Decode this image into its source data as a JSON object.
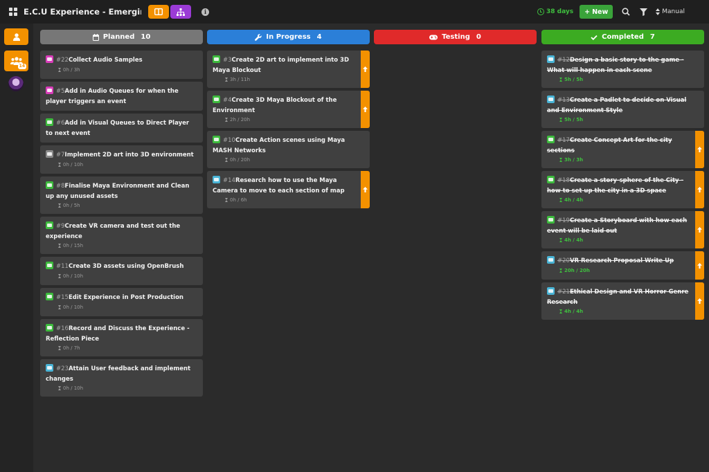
{
  "app": {
    "title": "E.C.U Experience - Emerging Te..."
  },
  "topbar": {
    "days_left": "38 days",
    "new_label": "New",
    "sort_label": "Manual"
  },
  "sidebar": {
    "team_badge": "14"
  },
  "colors": {
    "orange": "#f39100",
    "purple": "#9b3bd6",
    "green": "#3aa33a",
    "planned": "#777777",
    "in_progress": "#2b7fd8",
    "testing": "#e02a2a",
    "completed": "#3cab22"
  },
  "columns": [
    {
      "name": "Planned",
      "count": "10",
      "icon": "calendar-icon",
      "cards": [
        {
          "num": "#22",
          "title": "Collect Audio Samples",
          "time": "0h / 3h",
          "type": "pink"
        },
        {
          "num": "#5",
          "title": "Add in Audio Queues for when the player triggers an event",
          "time": "",
          "type": "pink"
        },
        {
          "num": "#6",
          "title": "Add in Visual Queues to Direct Player to next event",
          "time": "",
          "type": "green"
        },
        {
          "num": "#7",
          "title": "Implement 2D art into 3D environment",
          "time": "0h / 10h",
          "type": "gray"
        },
        {
          "num": "#8",
          "title": "Finalise Maya Environment and Clean up any unused assets",
          "time": "0h / 5h",
          "type": "green"
        },
        {
          "num": "#9",
          "title": "Create VR camera and test out the experience",
          "time": "0h / 15h",
          "type": "green"
        },
        {
          "num": "#11",
          "title": "Create 3D assets using OpenBrush",
          "time": "0h / 10h",
          "type": "green"
        },
        {
          "num": "#15",
          "title": "Edit Experience in Post Production",
          "time": "0h / 10h",
          "type": "green"
        },
        {
          "num": "#16",
          "title": "Record and Discuss the Experience - Reflection Piece",
          "time": "0h / 7h",
          "type": "green"
        },
        {
          "num": "#23",
          "title": "Attain User feedback and implement changes",
          "time": "0h / 10h",
          "type": "blue"
        }
      ]
    },
    {
      "name": "In Progress",
      "count": "4",
      "icon": "wrench-icon",
      "cards": [
        {
          "num": "#3",
          "title": "Create 2D art to implement into 3D Maya Blockout",
          "time": "3h / 11h",
          "type": "green",
          "arrow": true
        },
        {
          "num": "#4",
          "title": "Create 3D Maya Blockout of the Environment",
          "time": "2h / 20h",
          "type": "green",
          "arrow": true
        },
        {
          "num": "#10",
          "title": "Create Action scenes using Maya MASH Networks",
          "time": "0h / 20h",
          "type": "green"
        },
        {
          "num": "#14",
          "title": "Research how to use the Maya Camera to move to each section of map",
          "time": "0h / 6h",
          "type": "blue",
          "arrow": true
        }
      ]
    },
    {
      "name": "Testing",
      "count": "0",
      "icon": "gamepad-icon",
      "cards": []
    },
    {
      "name": "Completed",
      "count": "7",
      "icon": "check-icon",
      "cards": [
        {
          "num": "#12",
          "title": "Design a basic story to the game - What will happen in each scene",
          "time": "5h / 5h",
          "type": "blue"
        },
        {
          "num": "#13",
          "title": "Create a Padlet to decide on Visual and Environment Style",
          "time": "5h / 5h",
          "type": "blue"
        },
        {
          "num": "#17",
          "title": "Create Concept Art for the city sections",
          "time": "3h / 3h",
          "type": "green",
          "arrow": true
        },
        {
          "num": "#18",
          "title": "Create a story-sphere of the City - how to set up the city in a 3D space",
          "time": "4h / 4h",
          "type": "green",
          "arrow": true
        },
        {
          "num": "#19",
          "title": "Create a Storyboard with how each event will be laid out",
          "time": "4h / 4h",
          "type": "green",
          "arrow": true
        },
        {
          "num": "#20",
          "title": "VR Research Proposal Write Up",
          "time": "20h / 20h",
          "type": "blue",
          "arrow": true
        },
        {
          "num": "#21",
          "title": "Ethical Design and VR Horror Genre Research",
          "time": "4h / 4h",
          "type": "blue",
          "arrow": true
        }
      ]
    }
  ]
}
